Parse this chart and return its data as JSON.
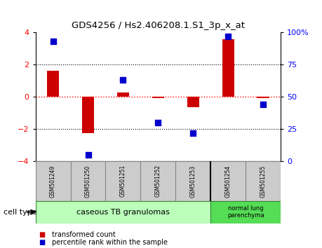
{
  "title": "GDS4256 / Hs2.406208.1.S1_3p_x_at",
  "samples": [
    "GSM501249",
    "GSM501250",
    "GSM501251",
    "GSM501252",
    "GSM501253",
    "GSM501254",
    "GSM501255"
  ],
  "transformed_counts": [
    1.6,
    -2.25,
    0.28,
    -0.08,
    -0.65,
    3.55,
    -0.08
  ],
  "percentile_ranks": [
    93,
    5,
    63,
    30,
    22,
    97,
    44
  ],
  "ylim_left": [
    -4,
    4
  ],
  "ylim_right": [
    0,
    100
  ],
  "yticks_left": [
    -4,
    -2,
    0,
    2,
    4
  ],
  "yticks_right": [
    0,
    25,
    50,
    75,
    100
  ],
  "bar_color": "#cc0000",
  "dot_color": "#0000cc",
  "num_group1": 5,
  "group1_label": "caseous TB granulomas",
  "group2_label": "normal lung\nparenchyma",
  "group1_color": "#bbffbb",
  "group2_color": "#55dd55",
  "cell_type_label": "cell type",
  "legend1_label": "transformed count",
  "legend2_label": "percentile rank within the sample",
  "bar_width": 0.35,
  "dot_size": 40,
  "hline_color": "#ff0000",
  "grid_color": "#000000"
}
